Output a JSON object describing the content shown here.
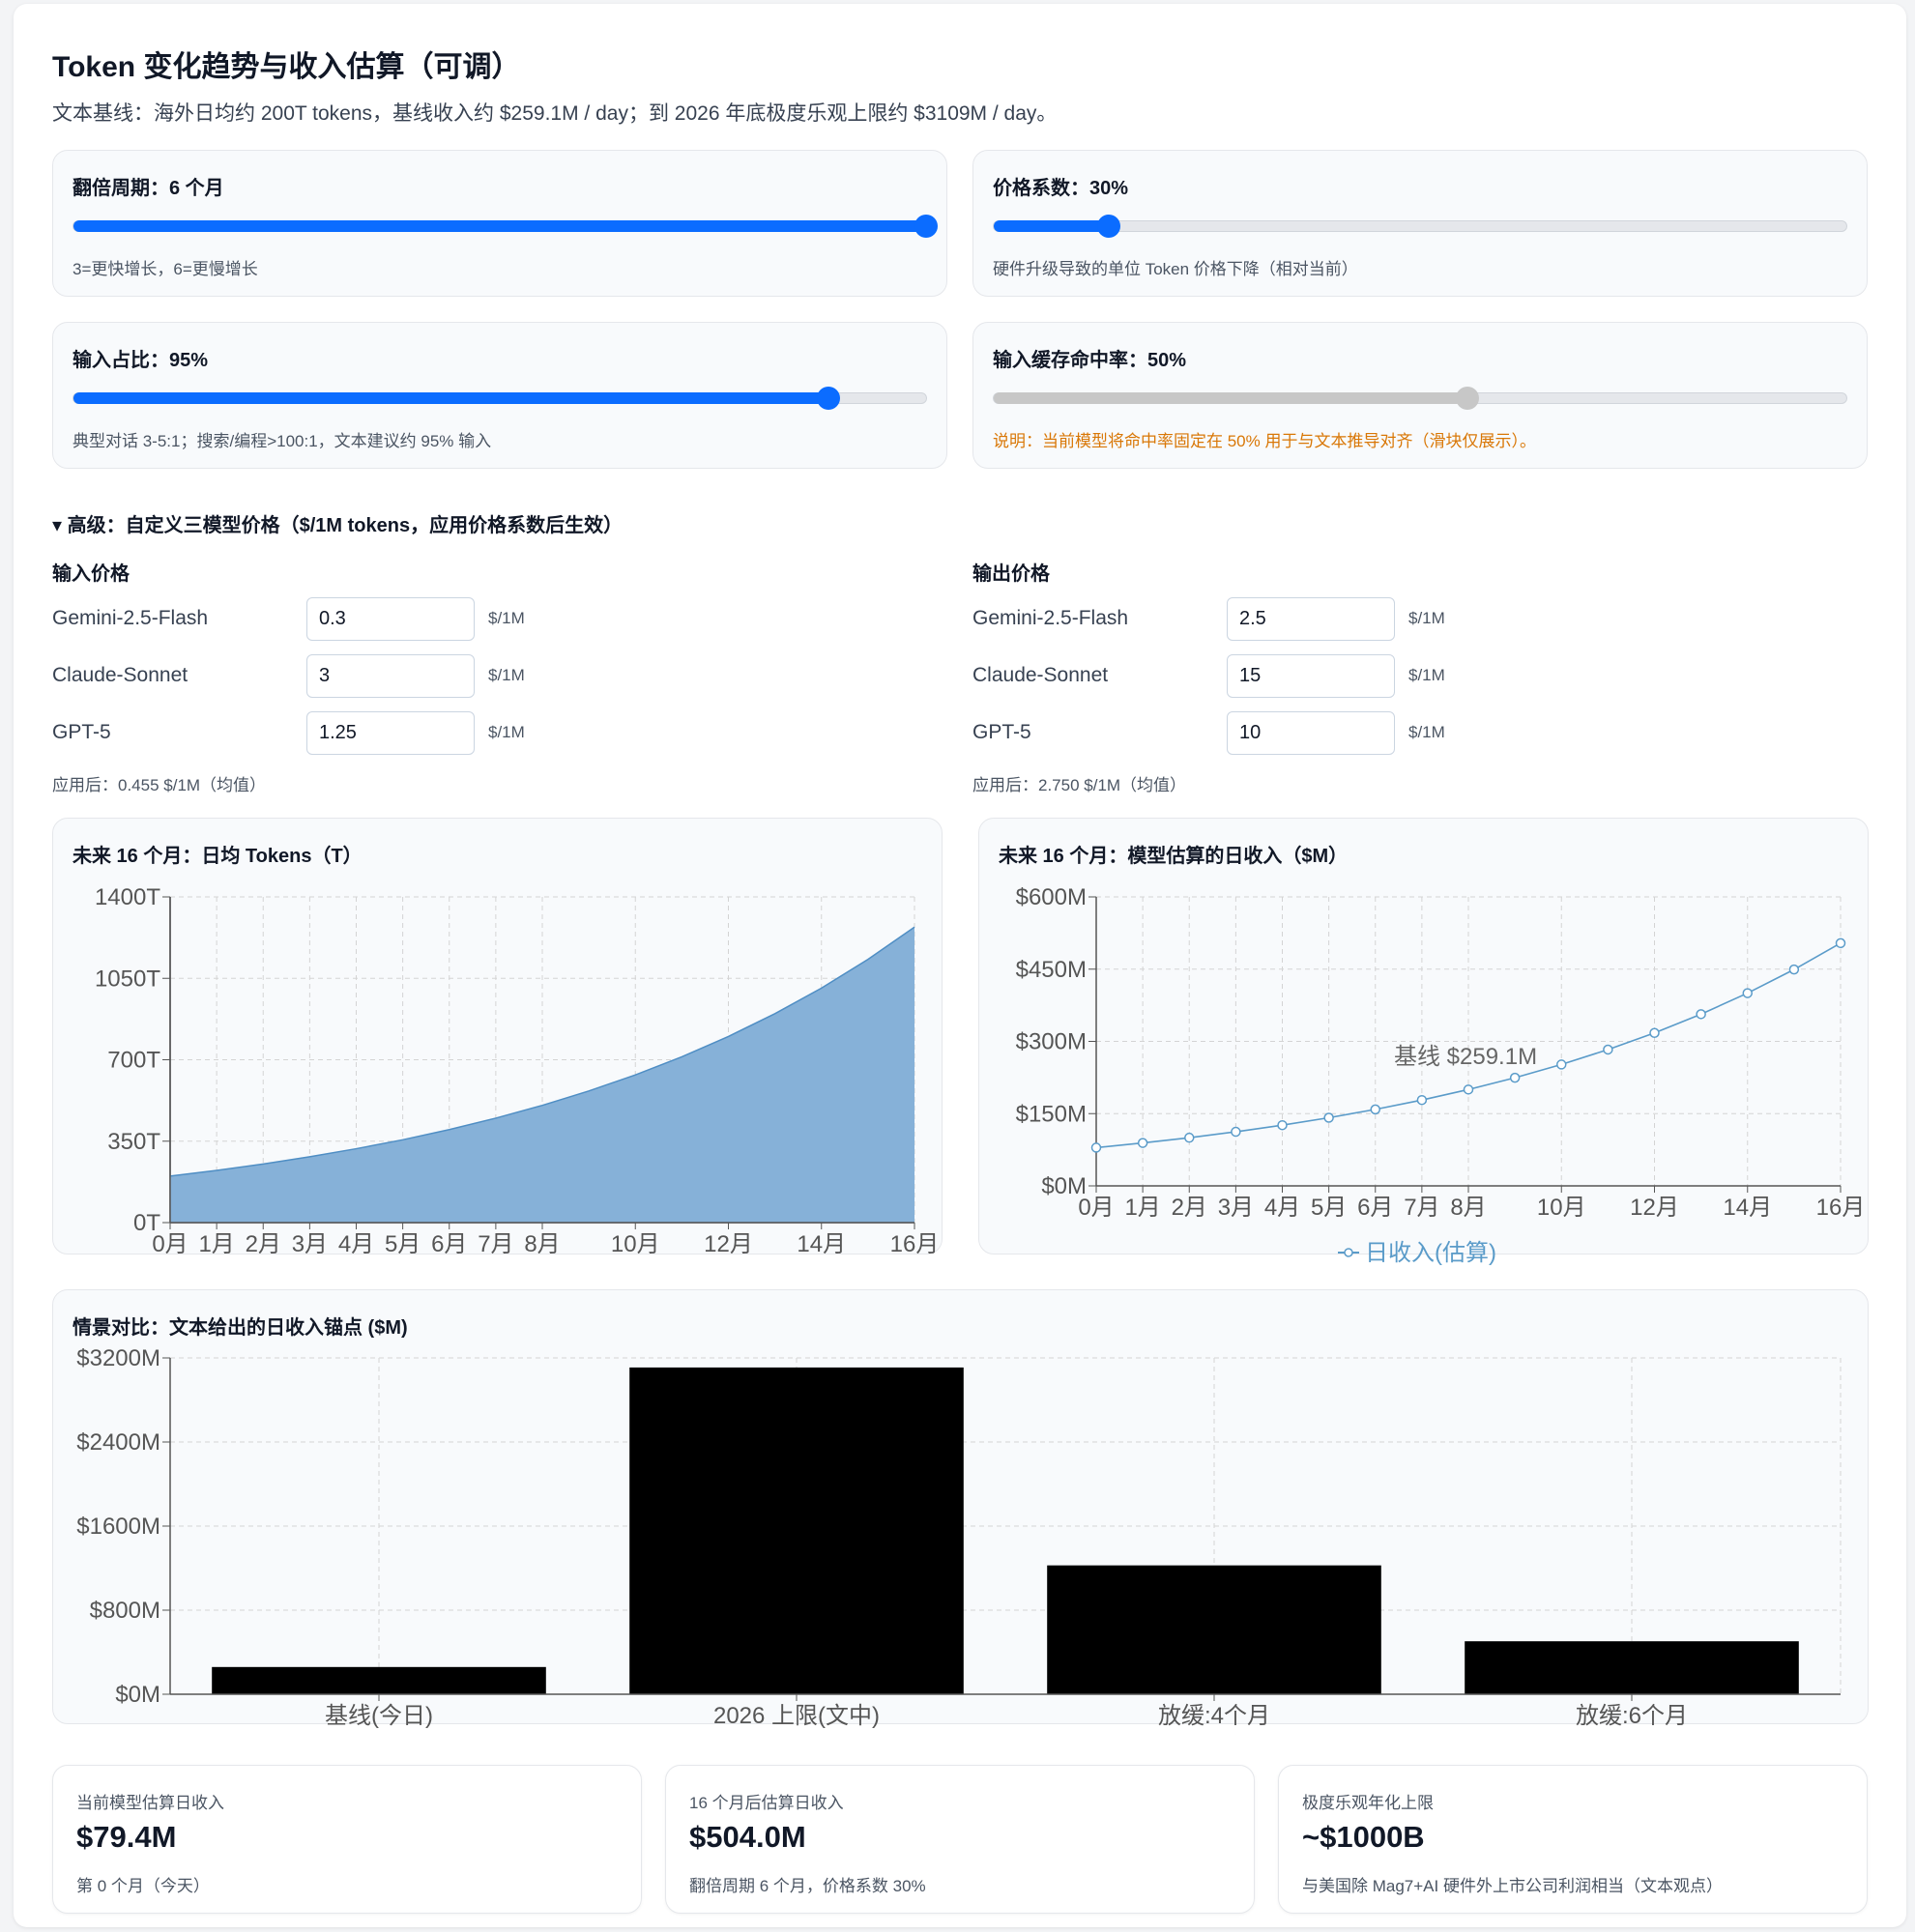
{
  "header": {
    "title": "Token 变化趋势与收入估算（可调）",
    "subtitle": "文本基线：海外日均约 200T tokens，基线收入约 $259.1M / day；到 2026 年底极度乐观上限约 $3109M / day。"
  },
  "sliders": [
    {
      "label": "翻倍周期：6 个月",
      "note": "3=更快增长，6=更慢增长",
      "level_fraction": 1.0,
      "disabled": false
    },
    {
      "label": "价格系数：30%",
      "note": "硬件升级导致的单位 Token 价格下降（相对当前）",
      "level_fraction": 0.135,
      "disabled": false
    },
    {
      "label": "输入占比：95%",
      "note": "典型对话 3-5:1；搜索/编程>100:1，文本建议约 95% 输入",
      "level_fraction": 0.885,
      "disabled": false
    },
    {
      "label": "输入缓存命中率：50%",
      "note": "说明：当前模型将命中率固定在 50% 用于与文本推导对齐（滑块仅展示）。",
      "level_fraction": 0.555,
      "disabled": true
    }
  ],
  "advanced": {
    "summary": "▾ 高级：自定义三模型价格（$/1M tokens，应用价格系数后生效）",
    "input": {
      "heading": "输入价格",
      "rows": [
        {
          "model": "Gemini-2.5-Flash",
          "value": "0.3",
          "unit": "$/1M"
        },
        {
          "model": "Claude-Sonnet",
          "value": "3",
          "unit": "$/1M"
        },
        {
          "model": "GPT-5",
          "value": "1.25",
          "unit": "$/1M"
        }
      ],
      "after": "应用后：0.455 $/1M（均值）"
    },
    "output": {
      "heading": "输出价格",
      "rows": [
        {
          "model": "Gemini-2.5-Flash",
          "value": "2.5",
          "unit": "$/1M"
        },
        {
          "model": "Claude-Sonnet",
          "value": "15",
          "unit": "$/1M"
        },
        {
          "model": "GPT-5",
          "value": "10",
          "unit": "$/1M"
        }
      ],
      "after": "应用后：2.750 $/1M（均值）"
    }
  },
  "colors": {
    "accent": "#0b6cff",
    "area_fill": "#86b1d8",
    "area_line": "#4f8ec4",
    "line": "#5a9bc9",
    "bar": "#000000",
    "warn": "#d97706"
  },
  "chart_data": [
    {
      "type": "area",
      "title": "未来 16 个月：日均 Tokens（T）",
      "x": [
        0,
        1,
        2,
        3,
        4,
        5,
        6,
        7,
        8,
        9,
        10,
        11,
        12,
        13,
        14,
        15,
        16
      ],
      "x_tick_labels": [
        "0月",
        "1月",
        "2月",
        "3月",
        "4月",
        "5月",
        "6月",
        "7月",
        "8月",
        "10月",
        "12月",
        "14月",
        "16月"
      ],
      "x_tick_values": [
        0,
        1,
        2,
        3,
        4,
        5,
        6,
        7,
        8,
        10,
        12,
        14,
        16
      ],
      "y": [
        200,
        224.5,
        252,
        283,
        317.5,
        356,
        400,
        449,
        504,
        565.7,
        635,
        712.7,
        800,
        898,
        1008,
        1131.4,
        1270
      ],
      "ylim": [
        0,
        1400
      ],
      "y_ticks": [
        0,
        350,
        700,
        1050,
        1400
      ],
      "y_tick_labels": [
        "0T",
        "350T",
        "700T",
        "1050T",
        "1400T"
      ],
      "grid": true
    },
    {
      "type": "line",
      "title": "未来 16 个月：模型估算的日收入（$M）",
      "x": [
        0,
        1,
        2,
        3,
        4,
        5,
        6,
        7,
        8,
        9,
        10,
        11,
        12,
        13,
        14,
        15,
        16
      ],
      "x_tick_labels": [
        "0月",
        "1月",
        "2月",
        "3月",
        "4月",
        "5月",
        "6月",
        "7月",
        "8月",
        "10月",
        "12月",
        "14月",
        "16月"
      ],
      "x_tick_values": [
        0,
        1,
        2,
        3,
        4,
        5,
        6,
        7,
        8,
        10,
        12,
        14,
        16
      ],
      "series": [
        {
          "name": "日收入(估算)",
          "values": [
            79.4,
            89.1,
            100,
            112.3,
            126,
            141.5,
            158.8,
            178.2,
            200,
            224.5,
            252,
            283,
            317.6,
            356.5,
            400.2,
            449.2,
            504
          ]
        }
      ],
      "ylim": [
        0,
        600
      ],
      "y_ticks": [
        0,
        150,
        300,
        450,
        600
      ],
      "y_tick_labels": [
        "$0M",
        "$150M",
        "$300M",
        "$450M",
        "$600M"
      ],
      "annotation": "基线 $259.1M",
      "annotation_y": 259.1,
      "grid": true,
      "legend": "bottom"
    },
    {
      "type": "bar",
      "title": "情景对比：文本给出的日收入锚点 ($M)",
      "categories": [
        "基线(今日)",
        "2026 上限(文中)",
        "放缓:4个月",
        "放缓:6个月"
      ],
      "values": [
        259.1,
        3109,
        1226,
        504
      ],
      "ylim": [
        0,
        3200
      ],
      "y_ticks": [
        0,
        800,
        1600,
        2400,
        3200
      ],
      "y_tick_labels": [
        "$0M",
        "$800M",
        "$1600M",
        "$2400M",
        "$3200M"
      ],
      "grid": true
    }
  ],
  "stats": [
    {
      "label": "当前模型估算日收入",
      "value": "$79.4M",
      "sub": "第 0 个月（今天）"
    },
    {
      "label": "16 个月后估算日收入",
      "value": "$504.0M",
      "sub": "翻倍周期 6 个月，价格系数 30%"
    },
    {
      "label": "极度乐观年化上限",
      "value": "~$1000B",
      "sub": "与美国除 Mag7+AI 硬件外上市公司利润相当（文本观点）"
    }
  ]
}
